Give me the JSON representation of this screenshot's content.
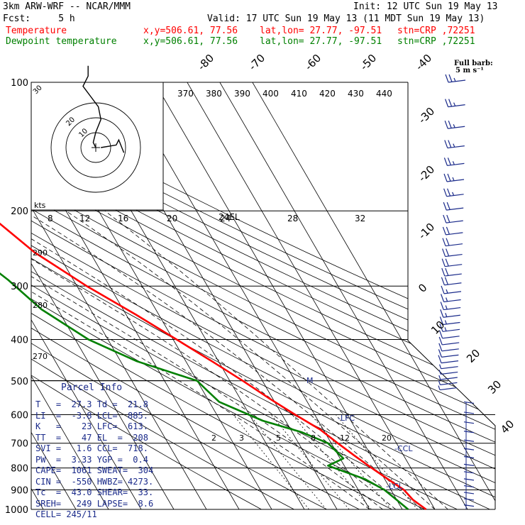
{
  "header": {
    "model": "3km ARW-WRF -- NCAR/MMM",
    "init": "Init: 12 UTC Sun 19 May 13",
    "fcst": "Fcst:     5 h",
    "valid": "Valid: 17 UTC Sun 19 May 13 (11 MDT Sun 19 May 13)",
    "temp_label": "Temperature",
    "dew_label": "Dewpoint temperature",
    "temp_xy": "x,y=506.61, 77.56",
    "temp_latlon": "lat,lon= 27.77, -97.51",
    "temp_stn": "stn=CRP ,72251",
    "dew_xy": "x,y=506.61, 77.56",
    "dew_latlon": "lat,lon= 27.77, -97.51",
    "dew_stn": "stn=CRP ,72251"
  },
  "colors": {
    "temperature": "#ff0000",
    "dewpoint": "#008000",
    "barbs": "#1a2a8a",
    "text": "#000000"
  },
  "barb_legend": {
    "line1": "Full barb:",
    "line2": "5 m s⁻¹"
  },
  "parcel_info": {
    "title": "Parcel Info",
    "rows": [
      "T   =  27.3 Td =  21.8",
      "LI  =  -3.8 LCL=  885.",
      "K   =    23 LFC=  613.",
      "TT  =    47 EL  =  208",
      "SVI =   1.6 CCL=  718.",
      "PW  =  3.33 YGP =  0.4",
      "CAPE=  1061 SWEAT=  304",
      "CIN =  -550 HWBZ= 4273.",
      "Tc  =  43.0 SHEAR=  33.",
      "SREH=   249 LAPSE=  8.6",
      "CELL= 245/11"
    ]
  },
  "chart_data": {
    "type": "line",
    "pressure_levels": [
      100,
      200,
      300,
      400,
      500,
      600,
      700,
      800,
      900,
      1000
    ],
    "pressure_labels": [
      "100",
      "200",
      "300",
      "400",
      "500",
      "600",
      "700",
      "800",
      "900",
      "1000"
    ],
    "isotherm_labels": [
      "-80",
      "-70",
      "-60",
      "-50",
      "-40",
      "-30",
      "-20",
      "-10",
      "0",
      "10",
      "20",
      "30",
      "40"
    ],
    "theta_labels": [
      "370",
      "380",
      "390",
      "400",
      "410",
      "420",
      "430",
      "440"
    ],
    "theta_left_labels": [
      "290",
      "280",
      "270"
    ],
    "hodo_speed_labels": [
      "8",
      "12",
      "16",
      "20",
      "24",
      "28",
      "32"
    ],
    "hodo_ring_labels": [
      "10",
      "20",
      "30"
    ],
    "hodo_kts": "kts",
    "mixing_labels": [
      "2",
      "3",
      "5",
      "8",
      "12",
      "20"
    ],
    "level_labels": {
      "lfc": "-LFC",
      "ccl": "-CCL",
      "lcl": "-LCL",
      "el": "24EL",
      "m": "M"
    },
    "series": [
      {
        "name": "Temperature",
        "points": [
          [
            100,
            -77
          ],
          [
            120,
            -70
          ],
          [
            150,
            -63
          ],
          [
            175,
            -58
          ],
          [
            200,
            -55
          ],
          [
            250,
            -47
          ],
          [
            300,
            -37
          ],
          [
            350,
            -27
          ],
          [
            400,
            -19
          ],
          [
            450,
            -12
          ],
          [
            500,
            -6
          ],
          [
            550,
            -1
          ],
          [
            600,
            4
          ],
          [
            650,
            9
          ],
          [
            700,
            12
          ],
          [
            750,
            15
          ],
          [
            800,
            18
          ],
          [
            850,
            21
          ],
          [
            900,
            24
          ],
          [
            950,
            25
          ],
          [
            1000,
            27.3
          ]
        ]
      },
      {
        "name": "Dewpoint temperature",
        "points": [
          [
            100,
            -92
          ],
          [
            130,
            -88
          ],
          [
            160,
            -82
          ],
          [
            200,
            -75
          ],
          [
            250,
            -66
          ],
          [
            290,
            -60
          ],
          [
            340,
            -55
          ],
          [
            400,
            -46
          ],
          [
            450,
            -35
          ],
          [
            500,
            -20
          ],
          [
            520,
            -19
          ],
          [
            560,
            -17
          ],
          [
            620,
            -7
          ],
          [
            660,
            3
          ],
          [
            700,
            9
          ],
          [
            760,
            11
          ],
          [
            790,
            5
          ],
          [
            850,
            14
          ],
          [
            900,
            18
          ],
          [
            950,
            20
          ],
          [
            1000,
            21.8
          ]
        ]
      }
    ],
    "hodograph": [
      [
        0,
        0
      ],
      [
        -1,
        2
      ],
      [
        0,
        6
      ],
      [
        2,
        11
      ],
      [
        1,
        16
      ],
      [
        -2,
        20
      ],
      [
        -5,
        24
      ],
      [
        -3,
        28
      ],
      [
        -3,
        32
      ]
    ],
    "hodograph_tail": [
      [
        2,
        0
      ],
      [
        8,
        1
      ],
      [
        9,
        3
      ],
      [
        11,
        -2
      ]
    ],
    "wind_barb_speeds": [
      25,
      25,
      25,
      25,
      25,
      25,
      25,
      20,
      20,
      20,
      20,
      20,
      20,
      20,
      20,
      15,
      15,
      15,
      15,
      15,
      15,
      10,
      10,
      10,
      10,
      10,
      5,
      5,
      5,
      5,
      5
    ]
  }
}
